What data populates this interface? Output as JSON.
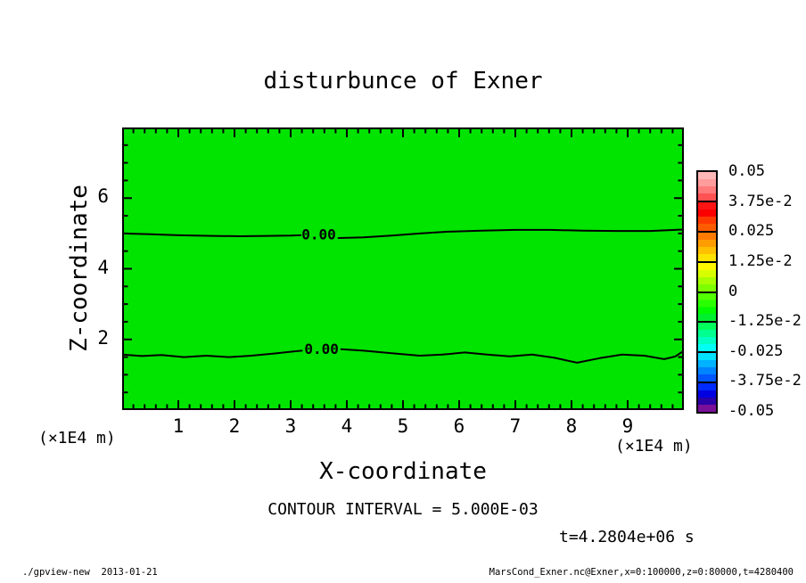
{
  "title": "disturbunce of Exner",
  "axes": {
    "x_label": "X-coordinate",
    "y_label": "Z-coordinate",
    "x_units": "(×1E4 m)",
    "y_units": "(×1E4 m)"
  },
  "annotations": {
    "contour_interval": "CONTOUR INTERVAL = 5.000E-03",
    "time": "t=4.2804e+06 s"
  },
  "footer": {
    "left": "./gpview-new  2013-01-21",
    "right": "MarsCond_Exner.nc@Exner,x=0:100000,z=0:80000,t=4280400"
  },
  "chart_data": {
    "type": "heatmap",
    "subtype": "filled-contour-plot",
    "title": "disturbunce of Exner",
    "xlabel": "X-coordinate",
    "ylabel": "Z-coordinate",
    "x_units": "(×1E4 m)",
    "y_units": "(×1E4 m)",
    "xlim": [
      0,
      10
    ],
    "ylim": [
      0,
      8
    ],
    "x_major_ticks": [
      1,
      2,
      3,
      4,
      5,
      6,
      7,
      8,
      9
    ],
    "x_minor_step": 0.2,
    "y_major_ticks": [
      2,
      4,
      6
    ],
    "y_minor_step": 0.5,
    "grid": false,
    "fill_color": "#00e400",
    "fill_note": "field is approximately zero everywhere; single green tone fills the panel",
    "contour_interval_value": 0.005,
    "contour_label": "0.00",
    "zero_contours": [
      {
        "label": "0.00",
        "label_x": 3.5,
        "label_z": 4.95,
        "segments": [
          [
            [
              0,
              5.0
            ],
            [
              0.5,
              4.98
            ],
            [
              1.0,
              4.95
            ],
            [
              1.6,
              4.93
            ],
            [
              2.1,
              4.92
            ],
            [
              2.6,
              4.93
            ],
            [
              3.0,
              4.94
            ],
            [
              3.18,
              4.95
            ]
          ],
          [
            [
              3.85,
              4.87
            ],
            [
              4.3,
              4.89
            ],
            [
              4.8,
              4.94
            ],
            [
              5.3,
              5.0
            ],
            [
              5.8,
              5.05
            ],
            [
              6.4,
              5.08
            ],
            [
              7.0,
              5.1
            ],
            [
              7.6,
              5.1
            ],
            [
              8.2,
              5.08
            ],
            [
              8.8,
              5.07
            ],
            [
              9.4,
              5.07
            ],
            [
              10,
              5.11
            ]
          ]
        ]
      },
      {
        "label": "0.00",
        "label_x": 3.55,
        "label_z": 1.7,
        "segments": [
          [
            [
              0,
              1.57
            ],
            [
              0.35,
              1.53
            ],
            [
              0.7,
              1.56
            ],
            [
              1.1,
              1.5
            ],
            [
              1.5,
              1.54
            ],
            [
              1.9,
              1.5
            ],
            [
              2.3,
              1.54
            ],
            [
              2.7,
              1.6
            ],
            [
              3.05,
              1.66
            ],
            [
              3.2,
              1.68
            ]
          ],
          [
            [
              3.9,
              1.72
            ],
            [
              4.3,
              1.68
            ],
            [
              4.8,
              1.61
            ],
            [
              5.3,
              1.54
            ],
            [
              5.7,
              1.57
            ],
            [
              6.1,
              1.63
            ],
            [
              6.5,
              1.57
            ],
            [
              6.9,
              1.52
            ],
            [
              7.3,
              1.57
            ],
            [
              7.7,
              1.48
            ],
            [
              8.1,
              1.34
            ],
            [
              8.5,
              1.47
            ],
            [
              8.9,
              1.57
            ],
            [
              9.3,
              1.54
            ],
            [
              9.65,
              1.44
            ],
            [
              9.85,
              1.52
            ],
            [
              10,
              1.68
            ]
          ]
        ]
      }
    ],
    "colorbar": {
      "min": -0.05,
      "max": 0.05,
      "labels": [
        "0.05",
        "3.75e-2",
        "0.025",
        "1.25e-2",
        "0",
        "-1.25e-2",
        "-0.025",
        "-3.75e-2",
        "-0.05"
      ],
      "values": [
        0.05,
        0.0375,
        0.025,
        0.0125,
        0,
        -0.0125,
        -0.025,
        -0.0375,
        -0.05
      ],
      "segment_colors": [
        [
          "#ffb8b8",
          "#ff9c9c",
          "#ff7a7a",
          "#ff5252"
        ],
        [
          "#ff1414",
          "#fa0000",
          "#ff3a00",
          "#ff5c00"
        ],
        [
          "#ff7b00",
          "#ff9d00",
          "#ffc000",
          "#ffe300"
        ],
        [
          "#fff700",
          "#d8ff00",
          "#a8ff00",
          "#7dff00"
        ],
        [
          "#52ff00",
          "#29ff00",
          "#00fa00",
          "#00ef2e"
        ],
        [
          "#00ff5c",
          "#00ff8f",
          "#00ffc2",
          "#00fff5"
        ],
        [
          "#00e0ff",
          "#00b2ff",
          "#0084ff",
          "#0057ff"
        ],
        [
          "#002bff",
          "#0000e0",
          "#2a00a8",
          "#7a0f99"
        ]
      ]
    }
  }
}
